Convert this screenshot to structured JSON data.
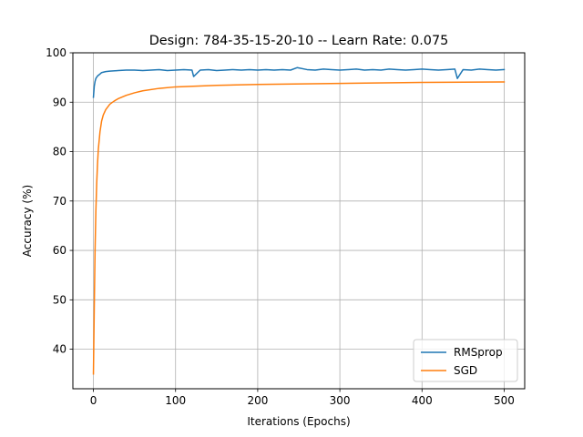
{
  "chart_data": {
    "type": "line",
    "title": "Design: 784-35-15-20-10 -- Learn Rate: 0.075",
    "xlabel": "Iterations (Epochs)",
    "ylabel": "Accuracy (%)",
    "xlim": [
      -25,
      525
    ],
    "ylim": [
      32,
      100
    ],
    "xticks": [
      0,
      100,
      200,
      300,
      400,
      500
    ],
    "yticks": [
      40,
      50,
      60,
      70,
      80,
      90,
      100
    ],
    "grid": true,
    "legend_position": "lower right",
    "series": [
      {
        "name": "RMSprop",
        "color": "#1f77b4",
        "x": [
          0,
          1,
          2,
          3,
          5,
          8,
          10,
          15,
          20,
          30,
          40,
          50,
          60,
          70,
          80,
          90,
          100,
          110,
          120,
          122,
          130,
          140,
          150,
          160,
          170,
          180,
          190,
          200,
          210,
          220,
          230,
          240,
          248,
          260,
          270,
          280,
          290,
          300,
          310,
          320,
          330,
          340,
          350,
          360,
          370,
          380,
          390,
          400,
          410,
          420,
          430,
          440,
          443,
          450,
          460,
          470,
          480,
          490,
          500
        ],
        "y": [
          91.0,
          93.2,
          94.2,
          94.8,
          95.3,
          95.7,
          96.0,
          96.2,
          96.3,
          96.4,
          96.5,
          96.5,
          96.4,
          96.5,
          96.6,
          96.4,
          96.5,
          96.6,
          96.5,
          95.2,
          96.5,
          96.6,
          96.4,
          96.5,
          96.6,
          96.5,
          96.6,
          96.5,
          96.6,
          96.5,
          96.6,
          96.5,
          97.0,
          96.6,
          96.5,
          96.7,
          96.6,
          96.5,
          96.6,
          96.7,
          96.5,
          96.6,
          96.5,
          96.7,
          96.6,
          96.5,
          96.6,
          96.7,
          96.6,
          96.5,
          96.6,
          96.7,
          94.8,
          96.6,
          96.5,
          96.7,
          96.6,
          96.5,
          96.6
        ]
      },
      {
        "name": "SGD",
        "color": "#ff7f0e",
        "x": [
          0,
          1,
          2,
          3,
          4,
          5,
          6,
          8,
          10,
          12,
          15,
          20,
          25,
          30,
          40,
          50,
          60,
          80,
          100,
          150,
          200,
          300,
          400,
          500
        ],
        "y": [
          35.0,
          48.0,
          60.0,
          68.0,
          73.5,
          77.5,
          80.5,
          84.0,
          86.2,
          87.4,
          88.5,
          89.6,
          90.2,
          90.7,
          91.4,
          91.9,
          92.3,
          92.8,
          93.1,
          93.4,
          93.6,
          93.8,
          94.0,
          94.1
        ]
      }
    ]
  }
}
